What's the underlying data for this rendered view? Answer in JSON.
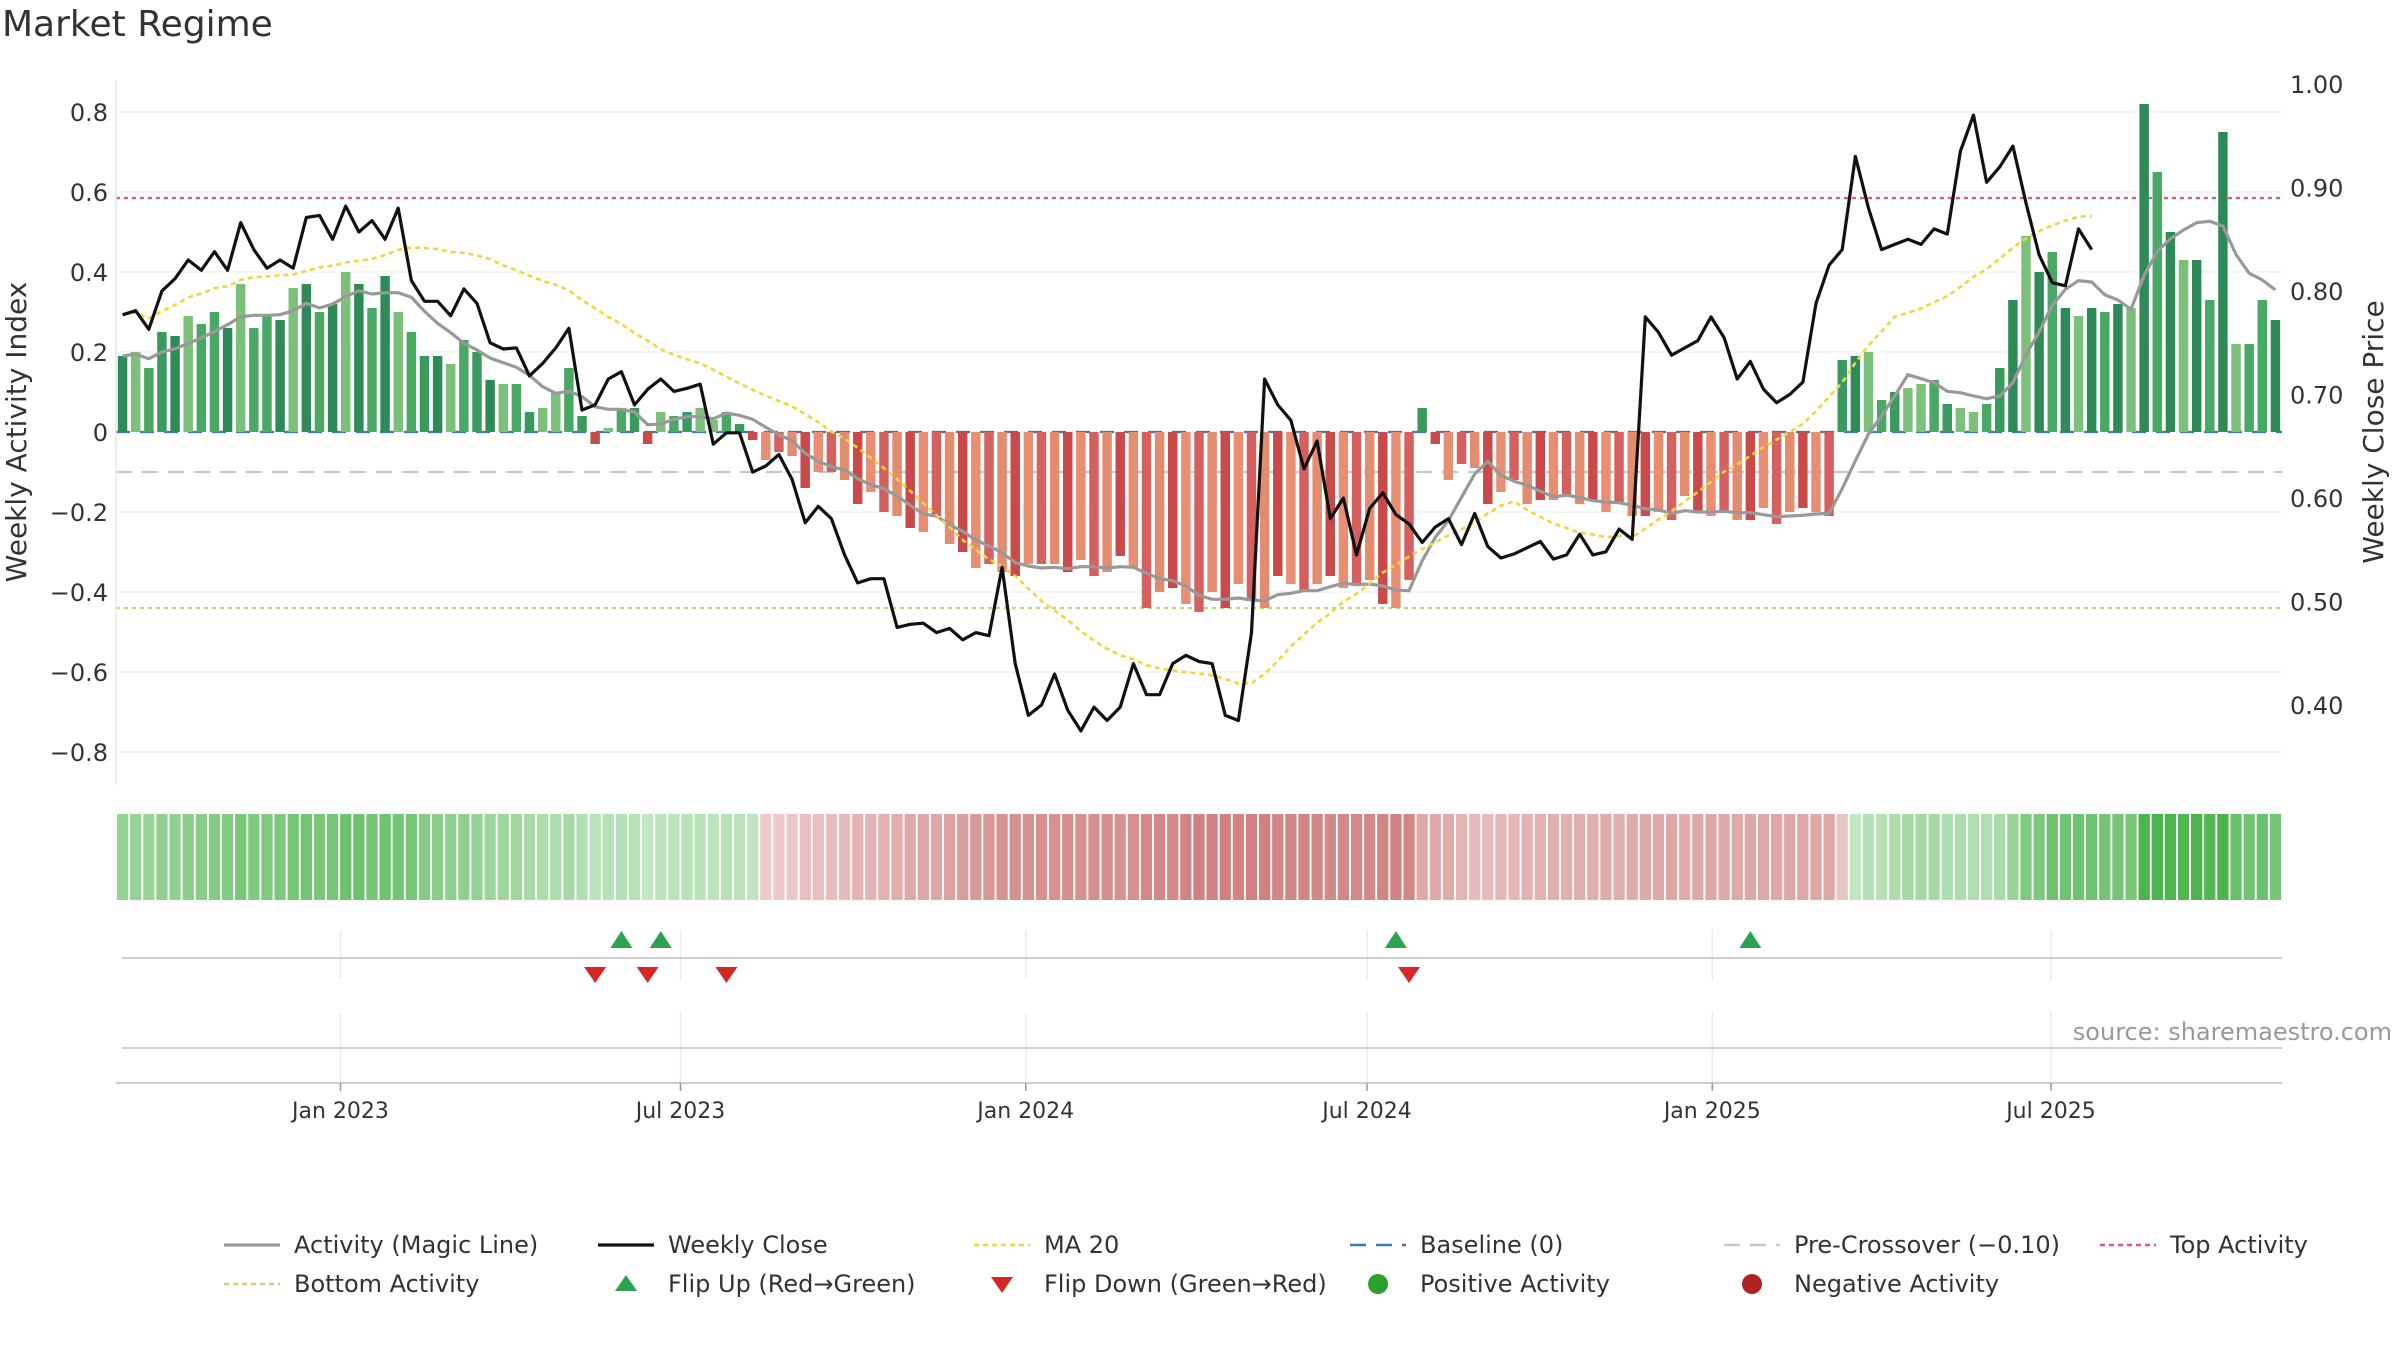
{
  "title": "Market Regime",
  "source": "source: sharemaestro.com",
  "chart_data": {
    "type": "bar+line",
    "title": "Market Regime",
    "ylabel_left": "Weekly Activity Index",
    "ylabel_right": "Weekly Close Price",
    "ylim_left": [
      -0.9,
      0.9
    ],
    "ylim_right": [
      0.32,
      1.0
    ],
    "yticks_left": [
      0.8,
      0.6,
      0.4,
      0.2,
      0,
      -0.2,
      -0.4,
      -0.6,
      -0.8
    ],
    "yticks_left_labels": [
      "0.8",
      "0.6",
      "0.4",
      "0.2",
      "0",
      "−0.2",
      "−0.4",
      "−0.6",
      "−0.8"
    ],
    "yticks_right": [
      1.0,
      0.9,
      0.8,
      0.7,
      0.6,
      0.5,
      0.4
    ],
    "yticks_right_labels": [
      "1.00",
      "0.90",
      "0.80",
      "0.70",
      "0.60",
      "0.50",
      "0.40"
    ],
    "xticks": [
      {
        "label": "Jan 2023",
        "week": 17.1
      },
      {
        "label": "Jul 2023",
        "week": 43.0
      },
      {
        "label": "Jan 2024",
        "week": 69.3
      },
      {
        "label": "Jul 2024",
        "week": 95.3
      },
      {
        "label": "Jan 2025",
        "week": 121.6
      },
      {
        "label": "Jul 2025",
        "week": 147.4
      }
    ],
    "reference_lines": {
      "baseline": 0,
      "pre_crossover": -0.1,
      "top_activity": 0.585,
      "bottom_activity": -0.44
    },
    "activity": [
      0.19,
      0.2,
      0.16,
      0.25,
      0.24,
      0.29,
      0.27,
      0.3,
      0.26,
      0.37,
      0.26,
      0.29,
      0.28,
      0.36,
      0.37,
      0.3,
      0.32,
      0.4,
      0.37,
      0.31,
      0.39,
      0.3,
      0.25,
      0.19,
      0.19,
      0.17,
      0.23,
      0.2,
      0.13,
      0.12,
      0.12,
      0.05,
      0.06,
      0.1,
      0.16,
      0.04,
      -0.03,
      0.01,
      0.06,
      0.06,
      -0.03,
      0.05,
      0.04,
      0.05,
      0.06,
      0.03,
      0.05,
      0.02,
      -0.02,
      -0.07,
      -0.05,
      -0.06,
      -0.14,
      -0.1,
      -0.1,
      -0.12,
      -0.18,
      -0.15,
      -0.2,
      -0.21,
      -0.24,
      -0.25,
      -0.21,
      -0.28,
      -0.3,
      -0.34,
      -0.33,
      -0.35,
      -0.36,
      -0.33,
      -0.33,
      -0.33,
      -0.35,
      -0.32,
      -0.36,
      -0.35,
      -0.31,
      -0.34,
      -0.44,
      -0.4,
      -0.39,
      -0.43,
      -0.45,
      -0.4,
      -0.44,
      -0.38,
      -0.42,
      -0.44,
      -0.36,
      -0.38,
      -0.4,
      -0.38,
      -0.36,
      -0.39,
      -0.38,
      -0.37,
      -0.43,
      -0.44,
      -0.37,
      0.06,
      -0.03,
      -0.12,
      -0.08,
      -0.09,
      -0.18,
      -0.15,
      -0.12,
      -0.18,
      -0.17,
      -0.17,
      -0.16,
      -0.18,
      -0.17,
      -0.2,
      -0.18,
      -0.21,
      -0.21,
      -0.2,
      -0.22,
      -0.16,
      -0.2,
      -0.21,
      -0.2,
      -0.22,
      -0.22,
      -0.19,
      -0.23,
      -0.2,
      -0.19,
      -0.2,
      -0.21,
      0.18,
      0.19,
      0.2,
      0.08,
      0.1,
      0.11,
      0.12,
      0.13,
      0.07,
      0.06,
      0.05,
      0.07,
      0.16,
      0.33,
      0.49,
      0.4,
      0.45,
      0.31,
      0.29,
      0.31,
      0.3,
      0.32,
      0.31,
      0.82,
      0.65,
      0.5,
      0.43,
      0.43,
      0.33,
      0.75,
      0.22,
      0.22,
      0.33,
      0.28
    ],
    "weekly_close": [
      0.777,
      0.781,
      0.763,
      0.8,
      0.812,
      0.83,
      0.82,
      0.838,
      0.82,
      0.866,
      0.84,
      0.822,
      0.83,
      0.822,
      0.871,
      0.873,
      0.85,
      0.882,
      0.857,
      0.868,
      0.85,
      0.88,
      0.81,
      0.79,
      0.79,
      0.776,
      0.802,
      0.788,
      0.75,
      0.744,
      0.745,
      0.718,
      0.73,
      0.745,
      0.764,
      0.685,
      0.69,
      0.715,
      0.722,
      0.69,
      0.705,
      0.715,
      0.703,
      0.706,
      0.71,
      0.652,
      0.663,
      0.663,
      0.625,
      0.631,
      0.642,
      0.618,
      0.576,
      0.592,
      0.58,
      0.545,
      0.518,
      0.522,
      0.522,
      0.475,
      0.478,
      0.479,
      0.47,
      0.474,
      0.463,
      0.47,
      0.467,
      0.533,
      0.44,
      0.39,
      0.4,
      0.43,
      0.395,
      0.375,
      0.398,
      0.385,
      0.398,
      0.44,
      0.41,
      0.41,
      0.44,
      0.448,
      0.442,
      0.44,
      0.39,
      0.385,
      0.47,
      0.715,
      0.69,
      0.675,
      0.628,
      0.655,
      0.58,
      0.6,
      0.545,
      0.59,
      0.605,
      0.584,
      0.575,
      0.557,
      0.572,
      0.58,
      0.555,
      0.585,
      0.553,
      0.542,
      0.546,
      0.552,
      0.558,
      0.541,
      0.545,
      0.565,
      0.545,
      0.548,
      0.57,
      0.56,
      0.775,
      0.76,
      0.738,
      0.745,
      0.752,
      0.775,
      0.755,
      0.715,
      0.732,
      0.705,
      0.692,
      0.7,
      0.712,
      0.788,
      0.825,
      0.84,
      0.93,
      0.88,
      0.84,
      0.845,
      0.85,
      0.845,
      0.86,
      0.855,
      0.935,
      0.97,
      0.905,
      0.92,
      0.94,
      0.885,
      0.835,
      0.808,
      0.805,
      0.86,
      0.84
    ]
  },
  "flip_up_weeks": [
    38,
    41,
    97,
    124
  ],
  "flip_down_weeks": [
    36,
    40,
    46,
    98
  ],
  "legend": [
    {
      "key": "activity",
      "label": "Activity (Magic Line)",
      "color": "#999999"
    },
    {
      "key": "weekly_close",
      "label": "Weekly Close",
      "color": "#111111"
    },
    {
      "key": "ma20",
      "label": "MA 20",
      "color": "#f2d53c"
    },
    {
      "key": "baseline",
      "label": "Baseline (0)",
      "color": "#3c78b4"
    },
    {
      "key": "pre_crossover",
      "label": "Pre-Crossover (−0.10)",
      "color": "#c8c8c8"
    },
    {
      "key": "top_activity",
      "label": "Top Activity",
      "color": "#e8577a"
    },
    {
      "key": "bottom_activity",
      "label": "Bottom Activity",
      "color": "#b8db7c"
    },
    {
      "key": "flip_up",
      "label": "Flip Up (Red→Green)",
      "color": "#2aa44f"
    },
    {
      "key": "flip_down",
      "label": "Flip Down (Green→Red)",
      "color": "#d62728"
    },
    {
      "key": "positive_activity",
      "label": "Positive Activity",
      "color": "#2ca02c"
    },
    {
      "key": "negative_activity",
      "label": "Negative Activity",
      "color": "#b22222"
    }
  ]
}
